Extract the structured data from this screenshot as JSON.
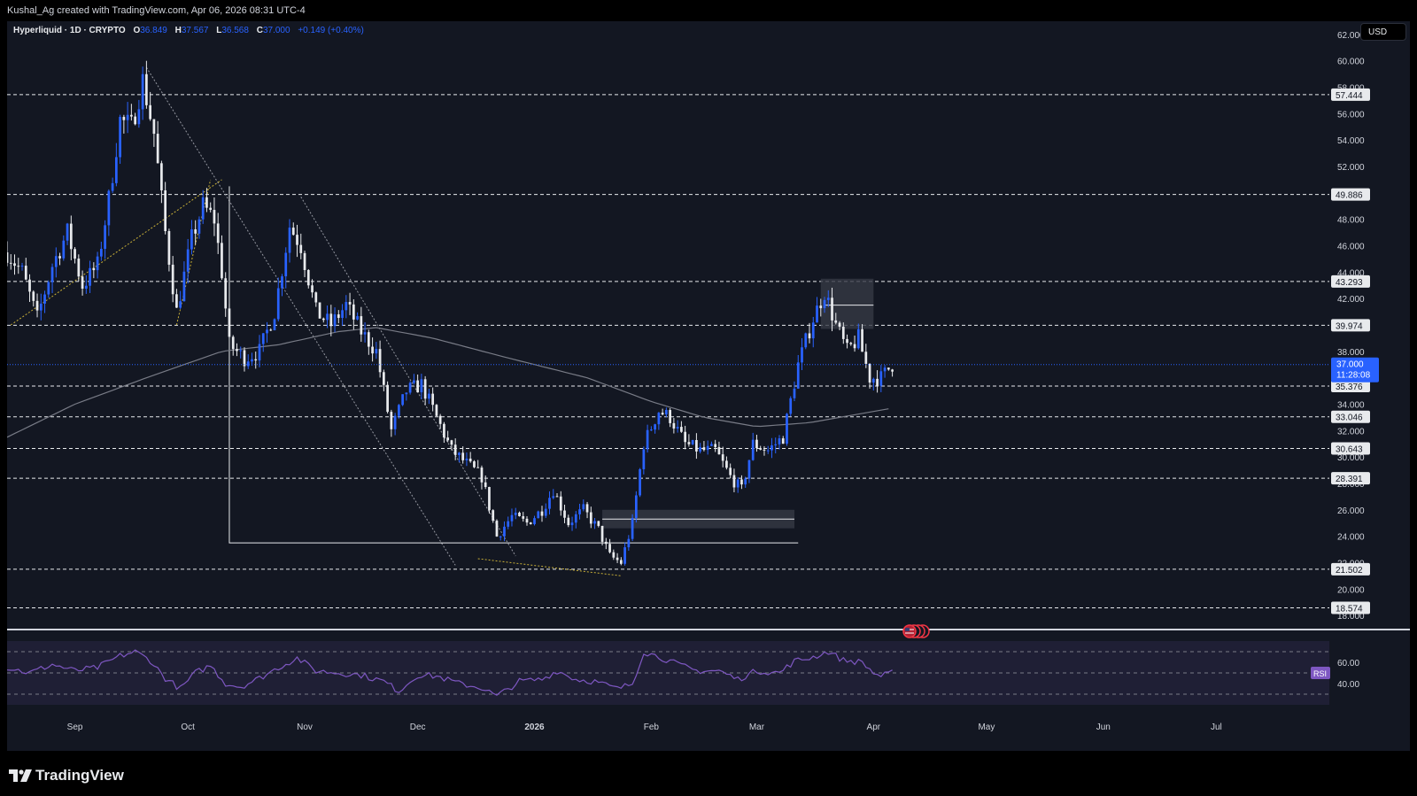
{
  "header": {
    "attribution": "Kushal_Ag created with TradingView.com, Apr 06, 2026 08:31 UTC-4"
  },
  "legend": {
    "symbol": "Hyperliquid · 1D · CRYPTO",
    "o_label": "O",
    "o_value": "36.849",
    "h_label": "H",
    "h_value": "37.567",
    "l_label": "L",
    "l_value": "36.568",
    "c_label": "C",
    "c_value": "37.000",
    "change": "+0.149 (+0.40%)"
  },
  "currency_button": "USD",
  "price_badge": {
    "price": "37.000",
    "countdown": "11:28:08"
  },
  "rsi_label": "RSI",
  "brand": "TradingView",
  "colors": {
    "background": "#000000",
    "pane": "#131722",
    "candle_up": "#2962ff",
    "candle_down": "#e8eaed",
    "ma": "#787b86",
    "rsi_line": "#7e57c2",
    "rsi_band": "#7e57c2",
    "trendline_yellow": "#c9b038",
    "price_badge": "#2962ff"
  },
  "chart_data": {
    "type": "candlestick",
    "symbol": "Hyperliquid",
    "interval": "1D",
    "y_axis": {
      "min": 17,
      "max": 63,
      "ticks": [
        18,
        20,
        22,
        24,
        26,
        28,
        30,
        32,
        34,
        36,
        38,
        40,
        42,
        44,
        46,
        48,
        50,
        52,
        54,
        56,
        58,
        60,
        62
      ],
      "tick_format": "fixed3"
    },
    "x_axis": {
      "start_date": "2025-08-14",
      "labels": [
        {
          "date": "2025-09-01",
          "text": "Sep"
        },
        {
          "date": "2025-10-01",
          "text": "Oct"
        },
        {
          "date": "2025-11-01",
          "text": "Nov"
        },
        {
          "date": "2025-12-01",
          "text": "Dec"
        },
        {
          "date": "2026-01-01",
          "text": "2026"
        },
        {
          "date": "2026-02-01",
          "text": "Feb"
        },
        {
          "date": "2026-03-01",
          "text": "Mar"
        },
        {
          "date": "2026-04-01",
          "text": "Apr"
        },
        {
          "date": "2026-05-01",
          "text": "May"
        },
        {
          "date": "2026-06-01",
          "text": "Jun"
        },
        {
          "date": "2026-07-01",
          "text": "Jul"
        }
      ]
    },
    "horizontal_levels": [
      "57.444",
      "49.886",
      "43.293",
      "39.974",
      "35.376",
      "33.046",
      "30.643",
      "28.391",
      "21.502",
      "18.574"
    ],
    "close_path": [
      [
        "2025-08-14",
        45.5
      ],
      [
        "2025-08-18",
        44.0
      ],
      [
        "2025-08-22",
        40.5
      ],
      [
        "2025-08-26",
        44.5
      ],
      [
        "2025-08-30",
        47.0
      ],
      [
        "2025-09-03",
        43.0
      ],
      [
        "2025-09-07",
        44.5
      ],
      [
        "2025-09-10",
        49.5
      ],
      [
        "2025-09-13",
        55.5
      ],
      [
        "2025-09-16",
        55.0
      ],
      [
        "2025-09-19",
        58.5
      ],
      [
        "2025-09-22",
        54.5
      ],
      [
        "2025-09-25",
        47.0
      ],
      [
        "2025-09-28",
        41.0
      ],
      [
        "2025-10-02",
        46.5
      ],
      [
        "2025-10-05",
        49.0
      ],
      [
        "2025-10-08",
        48.0
      ],
      [
        "2025-10-10",
        44.0
      ],
      [
        "2025-10-12",
        38.5
      ],
      [
        "2025-10-16",
        37.5
      ],
      [
        "2025-10-20",
        38.0
      ],
      [
        "2025-10-24",
        41.0
      ],
      [
        "2025-10-28",
        47.5
      ],
      [
        "2025-10-31",
        46.0
      ],
      [
        "2025-11-04",
        41.0
      ],
      [
        "2025-11-08",
        40.0
      ],
      [
        "2025-11-12",
        41.5
      ],
      [
        "2025-11-16",
        39.5
      ],
      [
        "2025-11-20",
        38.0
      ],
      [
        "2025-11-24",
        32.0
      ],
      [
        "2025-11-28",
        35.0
      ],
      [
        "2025-12-02",
        35.5
      ],
      [
        "2025-12-06",
        33.0
      ],
      [
        "2025-12-10",
        30.5
      ],
      [
        "2025-12-14",
        29.5
      ],
      [
        "2025-12-18",
        28.5
      ],
      [
        "2025-12-22",
        24.0
      ],
      [
        "2025-12-26",
        25.5
      ],
      [
        "2025-12-30",
        25.0
      ],
      [
        "2026-01-03",
        26.0
      ],
      [
        "2026-01-06",
        27.5
      ],
      [
        "2026-01-10",
        25.0
      ],
      [
        "2026-01-14",
        26.0
      ],
      [
        "2026-01-18",
        24.5
      ],
      [
        "2026-01-21",
        22.5
      ],
      [
        "2026-01-24",
        22.0
      ],
      [
        "2026-01-27",
        25.0
      ],
      [
        "2026-01-30",
        31.0
      ],
      [
        "2026-02-03",
        33.5
      ],
      [
        "2026-02-06",
        33.0
      ],
      [
        "2026-02-10",
        31.0
      ],
      [
        "2026-02-14",
        30.5
      ],
      [
        "2026-02-18",
        30.5
      ],
      [
        "2026-02-22",
        28.5
      ],
      [
        "2026-02-25",
        27.5
      ],
      [
        "2026-02-28",
        31.0
      ],
      [
        "2026-03-04",
        30.5
      ],
      [
        "2026-03-08",
        31.5
      ],
      [
        "2026-03-12",
        37.0
      ],
      [
        "2026-03-16",
        40.5
      ],
      [
        "2026-03-19",
        42.5
      ],
      [
        "2026-03-22",
        40.0
      ],
      [
        "2026-03-25",
        38.0
      ],
      [
        "2026-03-28",
        39.0
      ],
      [
        "2026-03-31",
        36.0
      ],
      [
        "2026-04-03",
        36.0
      ],
      [
        "2026-04-06",
        37.0
      ]
    ],
    "ma_path": [
      [
        "2025-08-14",
        31.5
      ],
      [
        "2025-09-01",
        34.0
      ],
      [
        "2025-09-20",
        36.0
      ],
      [
        "2025-10-10",
        38.0
      ],
      [
        "2025-10-25",
        38.5
      ],
      [
        "2025-11-10",
        39.5
      ],
      [
        "2025-11-20",
        39.8
      ],
      [
        "2025-12-05",
        39.0
      ],
      [
        "2025-12-25",
        37.5
      ],
      [
        "2026-01-15",
        36.0
      ],
      [
        "2026-02-01",
        34.2
      ],
      [
        "2026-02-15",
        33.0
      ],
      [
        "2026-03-01",
        32.3
      ],
      [
        "2026-03-15",
        32.6
      ],
      [
        "2026-04-06",
        33.7
      ]
    ],
    "rsi": {
      "levels": [
        70,
        50,
        30
      ],
      "ticks": [
        60,
        40
      ],
      "ymin": 20,
      "ymax": 80,
      "path": [
        [
          "2025-08-14",
          55
        ],
        [
          "2025-08-20",
          50
        ],
        [
          "2025-08-26",
          58
        ],
        [
          "2025-09-01",
          52
        ],
        [
          "2025-09-07",
          55
        ],
        [
          "2025-09-13",
          66
        ],
        [
          "2025-09-17",
          70
        ],
        [
          "2025-09-21",
          62
        ],
        [
          "2025-09-25",
          45
        ],
        [
          "2025-09-29",
          35
        ],
        [
          "2025-10-03",
          50
        ],
        [
          "2025-10-07",
          57
        ],
        [
          "2025-10-11",
          40
        ],
        [
          "2025-10-15",
          37
        ],
        [
          "2025-10-20",
          45
        ],
        [
          "2025-10-25",
          55
        ],
        [
          "2025-10-30",
          64
        ],
        [
          "2025-11-04",
          52
        ],
        [
          "2025-11-10",
          50
        ],
        [
          "2025-11-16",
          48
        ],
        [
          "2025-11-22",
          42
        ],
        [
          "2025-11-26",
          33
        ],
        [
          "2025-12-01",
          48
        ],
        [
          "2025-12-06",
          47
        ],
        [
          "2025-12-12",
          40
        ],
        [
          "2025-12-18",
          36
        ],
        [
          "2025-12-22",
          28
        ],
        [
          "2025-12-28",
          42
        ],
        [
          "2026-01-03",
          44
        ],
        [
          "2026-01-07",
          52
        ],
        [
          "2026-01-12",
          44
        ],
        [
          "2026-01-17",
          42
        ],
        [
          "2026-01-23",
          35
        ],
        [
          "2026-01-27",
          40
        ],
        [
          "2026-01-30",
          70
        ],
        [
          "2026-02-04",
          64
        ],
        [
          "2026-02-08",
          58
        ],
        [
          "2026-02-13",
          52
        ],
        [
          "2026-02-19",
          52
        ],
        [
          "2026-02-24",
          44
        ],
        [
          "2026-03-01",
          52
        ],
        [
          "2026-03-07",
          50
        ],
        [
          "2026-03-11",
          61
        ],
        [
          "2026-03-16",
          65
        ],
        [
          "2026-03-20",
          70
        ],
        [
          "2026-03-24",
          62
        ],
        [
          "2026-03-29",
          60
        ],
        [
          "2026-04-01",
          50
        ],
        [
          "2026-04-03",
          47
        ],
        [
          "2026-04-06",
          50
        ]
      ]
    }
  }
}
